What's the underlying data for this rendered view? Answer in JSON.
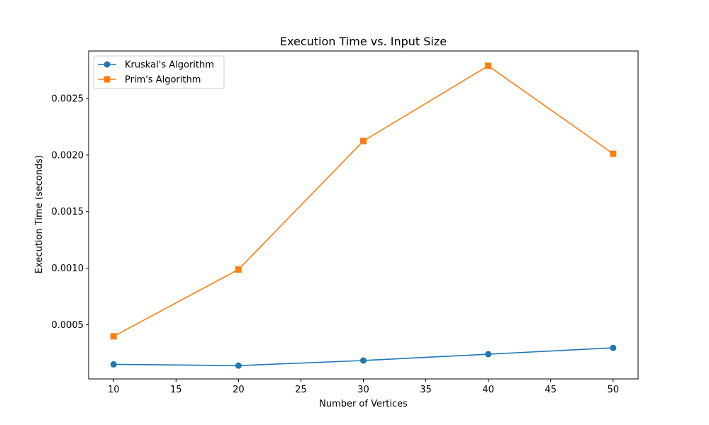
{
  "chart_data": {
    "type": "line",
    "title": "Execution Time vs. Input Size",
    "xlabel": "Number of Vertices",
    "ylabel": "Execution Time (seconds)",
    "x": [
      10,
      20,
      30,
      40,
      50
    ],
    "xlim": [
      8,
      52
    ],
    "ylim": [
      2e-05,
      0.00292
    ],
    "xticks": [
      10,
      15,
      20,
      25,
      30,
      35,
      40,
      45,
      50
    ],
    "yticks": [
      0.0005,
      0.001,
      0.0015,
      0.002,
      0.0025
    ],
    "ytick_labels": [
      "0.0005",
      "0.0010",
      "0.0015",
      "0.0020",
      "0.0025"
    ],
    "grid": false,
    "legend_position": "top-left",
    "series": [
      {
        "name": "Kruskal's Algorithm",
        "values": [
          0.000149,
          0.000138,
          0.000183,
          0.000239,
          0.000295
        ],
        "color": "#1f77b4",
        "marker": "circle"
      },
      {
        "name": "Prim's Algorithm",
        "values": [
          0.000397,
          0.000988,
          0.002124,
          0.002789,
          0.002011
        ],
        "color": "#ff7f0e",
        "marker": "square"
      }
    ]
  }
}
